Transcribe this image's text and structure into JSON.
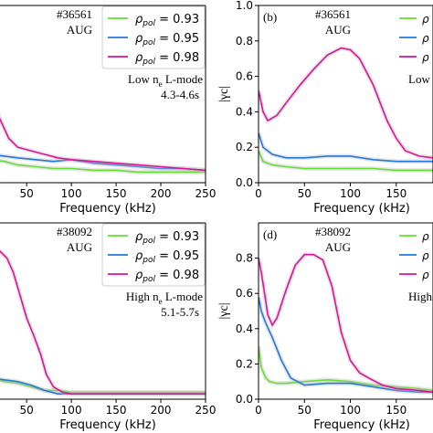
{
  "chart_data": [
    {
      "id": "a",
      "type": "line",
      "xlabel": "Frequency (kHz)",
      "xlim": [
        10,
        250
      ],
      "ylim": [
        0,
        1
      ],
      "xticks": [
        50,
        100,
        150,
        200,
        250
      ],
      "shot": "#36561",
      "device": "AUG",
      "annotation_line1": "Low n",
      "annotation_sub": "e",
      "annotation_line1b": " L-mode",
      "annotation_line2": "4.3-4.6s",
      "legend": [
        {
          "label": "ρpol = 0.93",
          "sym": "ρ",
          "sub": "pol",
          "val": " = 0.93",
          "color": "#66dd33"
        },
        {
          "label": "ρpol = 0.95",
          "sym": "ρ",
          "sub": "pol",
          "val": " = 0.95",
          "color": "#2277dd"
        },
        {
          "label": "ρpol = 0.98",
          "sym": "ρ",
          "sub": "pol",
          "val": " = 0.98",
          "color": "#dd1199"
        }
      ],
      "series": [
        {
          "color": "#66dd33",
          "x": [
            10,
            25,
            40,
            60,
            80,
            100,
            125,
            150,
            175,
            200,
            225,
            250
          ],
          "y": [
            0.13,
            0.12,
            0.1,
            0.09,
            0.08,
            0.08,
            0.07,
            0.07,
            0.06,
            0.06,
            0.06,
            0.06
          ]
        },
        {
          "color": "#2277dd",
          "x": [
            10,
            25,
            40,
            60,
            80,
            100,
            125,
            150,
            175,
            200,
            225,
            250
          ],
          "y": [
            0.16,
            0.15,
            0.14,
            0.13,
            0.12,
            0.13,
            0.11,
            0.1,
            0.09,
            0.08,
            0.08,
            0.07
          ]
        },
        {
          "color": "#dd1199",
          "x": [
            10,
            20,
            30,
            40,
            55,
            70,
            85,
            100,
            125,
            150,
            175,
            200,
            225,
            250
          ],
          "y": [
            0.5,
            0.36,
            0.25,
            0.2,
            0.18,
            0.16,
            0.14,
            0.13,
            0.12,
            0.11,
            0.1,
            0.09,
            0.08,
            0.07
          ]
        }
      ]
    },
    {
      "id": "b",
      "type": "line",
      "panel_label": "(b)",
      "xlabel": "Frequency (kHz)",
      "ylabel": "|γc|",
      "xlim": [
        0,
        190
      ],
      "ylim": [
        0,
        1
      ],
      "xticks": [
        0,
        50,
        100,
        150
      ],
      "yticks": [
        0,
        0.2,
        0.4,
        0.6,
        0.8,
        1.0
      ],
      "yticklabels": [
        "0.0",
        "0.2",
        "0.4",
        "0.6",
        "0.8",
        "1.0"
      ],
      "shot": "#36561",
      "device": "AUG",
      "annotation_line1": "Low",
      "series": [
        {
          "color": "#66dd33",
          "x": [
            0,
            5,
            15,
            30,
            50,
            75,
            100,
            125,
            150,
            175,
            190
          ],
          "y": [
            0.18,
            0.12,
            0.1,
            0.09,
            0.08,
            0.08,
            0.08,
            0.08,
            0.07,
            0.07,
            0.07
          ]
        },
        {
          "color": "#2277dd",
          "x": [
            0,
            5,
            15,
            30,
            50,
            75,
            100,
            125,
            150,
            175,
            190
          ],
          "y": [
            0.28,
            0.2,
            0.16,
            0.14,
            0.14,
            0.15,
            0.15,
            0.13,
            0.12,
            0.12,
            0.12
          ]
        },
        {
          "color": "#dd1199",
          "x": [
            0,
            5,
            10,
            20,
            30,
            45,
            60,
            75,
            90,
            100,
            110,
            125,
            140,
            150,
            160,
            175,
            190
          ],
          "y": [
            0.52,
            0.4,
            0.35,
            0.38,
            0.45,
            0.55,
            0.64,
            0.72,
            0.76,
            0.75,
            0.7,
            0.55,
            0.35,
            0.25,
            0.18,
            0.15,
            0.14
          ]
        }
      ]
    },
    {
      "id": "c",
      "type": "line",
      "xlabel": "Frequency (kHz)",
      "xlim": [
        10,
        250
      ],
      "ylim": [
        0,
        1
      ],
      "xticks": [
        50,
        100,
        150,
        200,
        250
      ],
      "shot": "#38092",
      "device": "AUG",
      "annotation_line1": "High n",
      "annotation_sub": "e",
      "annotation_line1b": " L-mode",
      "annotation_line2": "5.1-5.7s",
      "legend": [
        {
          "label": "ρpol = 0.93",
          "sym": "ρ",
          "sub": "pol",
          "val": " = 0.93",
          "color": "#66dd33"
        },
        {
          "label": "ρpol = 0.95",
          "sym": "ρ",
          "sub": "pol",
          "val": " = 0.95",
          "color": "#2277dd"
        },
        {
          "label": "ρpol = 0.98",
          "sym": "ρ",
          "sub": "pol",
          "val": " = 0.98",
          "color": "#dd1199"
        }
      ],
      "series": [
        {
          "color": "#66dd33",
          "x": [
            10,
            25,
            40,
            55,
            70,
            85,
            100,
            125,
            150,
            175,
            200,
            225,
            250
          ],
          "y": [
            0.12,
            0.1,
            0.09,
            0.07,
            0.05,
            0.05,
            0.04,
            0.04,
            0.04,
            0.04,
            0.04,
            0.04,
            0.04
          ]
        },
        {
          "color": "#2277dd",
          "x": [
            10,
            25,
            40,
            55,
            70,
            85,
            100,
            125,
            150,
            175,
            200,
            225,
            250
          ],
          "y": [
            0.12,
            0.11,
            0.1,
            0.08,
            0.05,
            0.03,
            0.03,
            0.03,
            0.03,
            0.03,
            0.03,
            0.03,
            0.03
          ]
        },
        {
          "color": "#dd1199",
          "x": [
            10,
            20,
            28,
            35,
            42,
            50,
            58,
            66,
            72,
            80,
            90,
            100,
            125,
            150,
            175,
            200,
            225,
            250
          ],
          "y": [
            0.85,
            0.84,
            0.8,
            0.72,
            0.6,
            0.46,
            0.36,
            0.25,
            0.14,
            0.07,
            0.04,
            0.03,
            0.03,
            0.03,
            0.03,
            0.03,
            0.03,
            0.03
          ]
        }
      ]
    },
    {
      "id": "d",
      "type": "line",
      "panel_label": "(d)",
      "xlabel": "Frequency (kHz)",
      "ylabel": "|γc|",
      "xlim": [
        0,
        190
      ],
      "ylim": [
        0,
        1
      ],
      "xticks": [
        0,
        50,
        100,
        150
      ],
      "yticks": [
        0,
        0.2,
        0.4,
        0.6,
        0.8
      ],
      "yticklabels": [
        "0.0",
        "0.2",
        "0.4",
        "0.6",
        "0.8"
      ],
      "shot": "#38092",
      "device": "AUG",
      "annotation_line1": "High",
      "series": [
        {
          "color": "#66dd33",
          "x": [
            0,
            3,
            8,
            12,
            20,
            30,
            50,
            75,
            100,
            125,
            150,
            175,
            190
          ],
          "y": [
            0.3,
            0.18,
            0.12,
            0.1,
            0.09,
            0.09,
            0.1,
            0.11,
            0.1,
            0.08,
            0.07,
            0.06,
            0.05
          ]
        },
        {
          "color": "#2277dd",
          "x": [
            0,
            3,
            8,
            15,
            25,
            35,
            50,
            75,
            100,
            125,
            150,
            175,
            190
          ],
          "y": [
            0.58,
            0.5,
            0.43,
            0.35,
            0.22,
            0.12,
            0.08,
            0.09,
            0.09,
            0.07,
            0.05,
            0.04,
            0.04
          ]
        },
        {
          "color": "#dd1199",
          "x": [
            0,
            3,
            6,
            10,
            15,
            20,
            30,
            40,
            50,
            60,
            70,
            80,
            90,
            100,
            110,
            120,
            135,
            150,
            175,
            190
          ],
          "y": [
            0.8,
            0.72,
            0.62,
            0.48,
            0.42,
            0.46,
            0.62,
            0.76,
            0.82,
            0.82,
            0.79,
            0.64,
            0.38,
            0.22,
            0.15,
            0.12,
            0.08,
            0.06,
            0.05,
            0.04
          ]
        }
      ]
    }
  ]
}
